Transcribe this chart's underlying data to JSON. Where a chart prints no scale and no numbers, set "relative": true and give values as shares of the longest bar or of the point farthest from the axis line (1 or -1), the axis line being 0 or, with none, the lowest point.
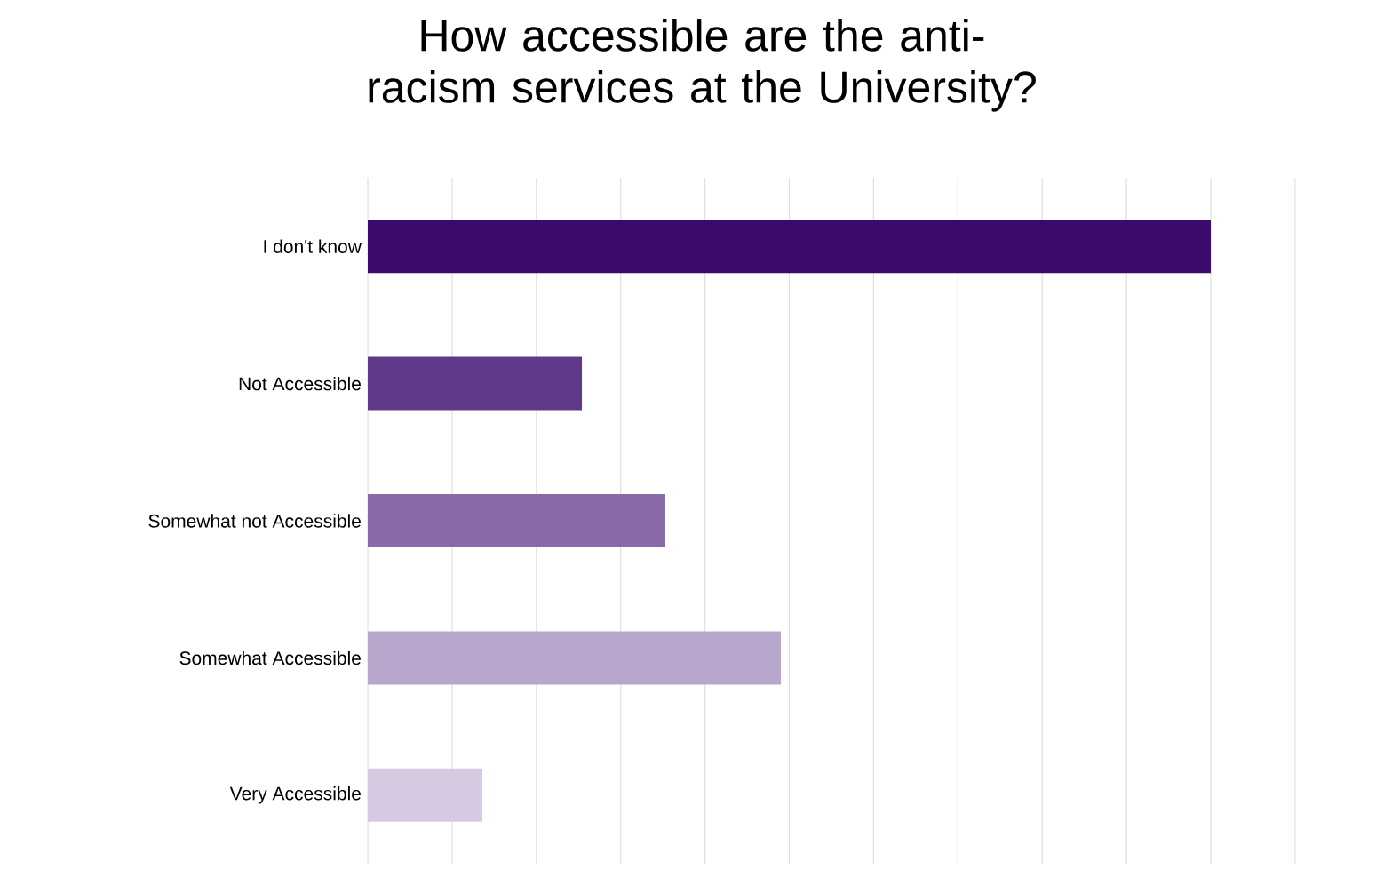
{
  "chart_data": {
    "type": "bar",
    "orientation": "horizontal",
    "relative": true,
    "title": "How accessible are the anti-racism services at the University?",
    "categories": [
      "I don't know",
      "Not Accessible",
      "Somewhat not Accessible",
      "Somewhat Accessible",
      "Very Accessible"
    ],
    "values": [
      1,
      0.254,
      0.353,
      0.49,
      0.136
    ],
    "colors": [
      "#3c096c",
      "#5f3a8a",
      "#8a6aa6",
      "#b8a6cc",
      "#d6cae2"
    ],
    "grid": "x"
  }
}
